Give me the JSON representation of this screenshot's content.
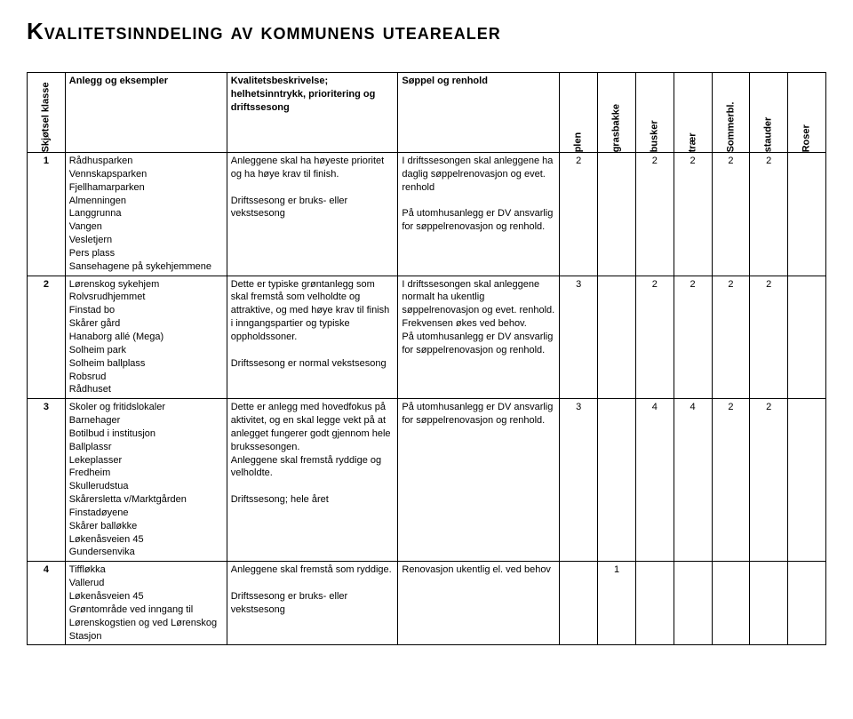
{
  "title": "Kvalitetsinndeling av kommunens utearealer",
  "headers": {
    "klasse": "Skjøtsel\nklasse",
    "anlegg": "Anlegg og eksempler",
    "kvalitet": "Kvalitetsbeskrivelse; helhetsinntrykk, prioritering og driftssesong",
    "soppel": "Søppel og renhold",
    "plen": "plen",
    "grasbakke": "grasbakke",
    "busker": "busker",
    "traer": "trær",
    "sommerbl": "Sommerbl.",
    "stauder": "stauder",
    "roser": "Roser"
  },
  "rows": [
    {
      "klasse": "1",
      "anlegg": "Rådhusparken\nVennskapsparken\nFjellhamarparken\nAlmenningen\nLanggrunna\nVangen\nVesletjern\nPers plass\nSansehagene på sykehjemmene",
      "kvalitet": "Anleggene skal ha høyeste prioritet og ha høye krav til finish.\n\nDriftssesong er bruks- eller vekstsesong",
      "soppel": "I driftssesongen skal anleggene ha daglig søppelrenovasjon og evet. renhold\n\nPå utomhusanlegg er DV ansvarlig for søppelrenovasjon og renhold.",
      "plen": "2",
      "grasbakke": "",
      "busker": "2",
      "traer": "2",
      "sommerbl": "2",
      "stauder": "2",
      "roser": ""
    },
    {
      "klasse": "2",
      "anlegg": "Lørenskog sykehjem\nRolvsrudhjemmet\nFinstad bo\nSkårer gård\nHanaborg allé (Mega)\nSolheim park\nSolheim ballplass\nRobsrud\nRådhuset",
      "kvalitet": "Dette er typiske grøntanlegg som skal fremstå som velholdte og attraktive, og med høye krav til finish i inngangspartier og typiske oppholdssoner.\n\nDriftssesong er normal vekstsesong",
      "soppel": "I driftssesongen skal anleggene normalt ha ukentlig søppelrenovasjon og evet. renhold.\nFrekvensen økes ved behov.\nPå utomhusanlegg er DV ansvarlig for søppelrenovasjon og renhold.",
      "plen": "3",
      "grasbakke": "",
      "busker": "2",
      "traer": "2",
      "sommerbl": "2",
      "stauder": "2",
      "roser": ""
    },
    {
      "klasse": "3",
      "anlegg": "Skoler og fritidslokaler\nBarnehager\nBotilbud i institusjon\nBallplassr\nLekeplasser\nFredheim\nSkullerudstua\nSkårersletta v/Marktgården\nFinstadøyene\nSkårer balløkke\nLøkenåsveien 45\nGundersenvika",
      "kvalitet": "Dette er anlegg med hovedfokus på aktivitet, og en skal legge vekt på at anlegget fungerer godt gjennom hele brukssesongen.\nAnleggene skal fremstå ryddige og velholdte.\n\nDriftssesong; hele året",
      "soppel": "På utomhusanlegg er DV ansvarlig for søppelrenovasjon og renhold.",
      "plen": "3",
      "grasbakke": "",
      "busker": "4",
      "traer": "4",
      "sommerbl": "2",
      "stauder": "2",
      "roser": ""
    },
    {
      "klasse": "4",
      "anlegg": "Tiffløkka\nVallerud\nLøkenåsveien 45\nGrøntområde ved inngang til Lørenskogstien og ved Lørenskog Stasjon",
      "kvalitet": "Anleggene skal fremstå som ryddige.\n\nDriftssesong er bruks- eller vekstsesong",
      "soppel": "Renovasjon ukentlig el. ved behov",
      "plen": "",
      "grasbakke": "1",
      "busker": "",
      "traer": "",
      "sommerbl": "",
      "stauder": "",
      "roser": ""
    }
  ]
}
